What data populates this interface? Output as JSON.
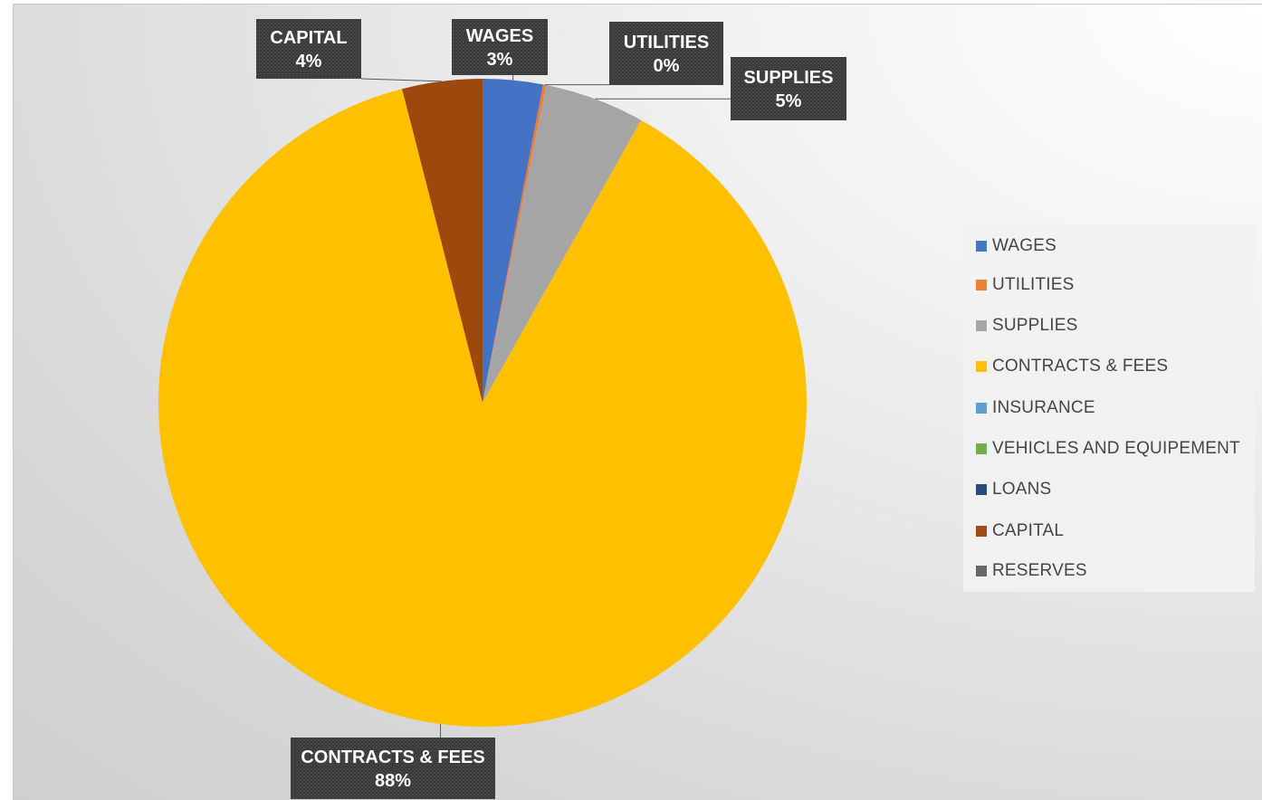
{
  "chart_data": {
    "type": "pie",
    "title": "",
    "legend_position": "right",
    "slices": [
      {
        "label": "WAGES",
        "value": 3,
        "display": "3%",
        "color": "#4472C4"
      },
      {
        "label": "UTILITIES",
        "value": 0.15,
        "display": "0%",
        "color": "#ED7D31"
      },
      {
        "label": "SUPPLIES",
        "value": 5,
        "display": "5%",
        "color": "#A5A5A5"
      },
      {
        "label": "CONTRACTS & FEES",
        "value": 88,
        "display": "88%",
        "color": "#FFC000"
      },
      {
        "label": "INSURANCE",
        "value": 0,
        "display": "",
        "color": "#5B9BD5"
      },
      {
        "label": "VEHICLES AND EQUIPEMENT",
        "value": 0,
        "display": "",
        "color": "#70AD47"
      },
      {
        "label": "LOANS",
        "value": 0,
        "display": "",
        "color": "#264478"
      },
      {
        "label": "CAPITAL",
        "value": 4,
        "display": "4%",
        "color": "#9E480E"
      },
      {
        "label": "RESERVES",
        "value": 0,
        "display": "",
        "color": "#636363"
      }
    ]
  }
}
